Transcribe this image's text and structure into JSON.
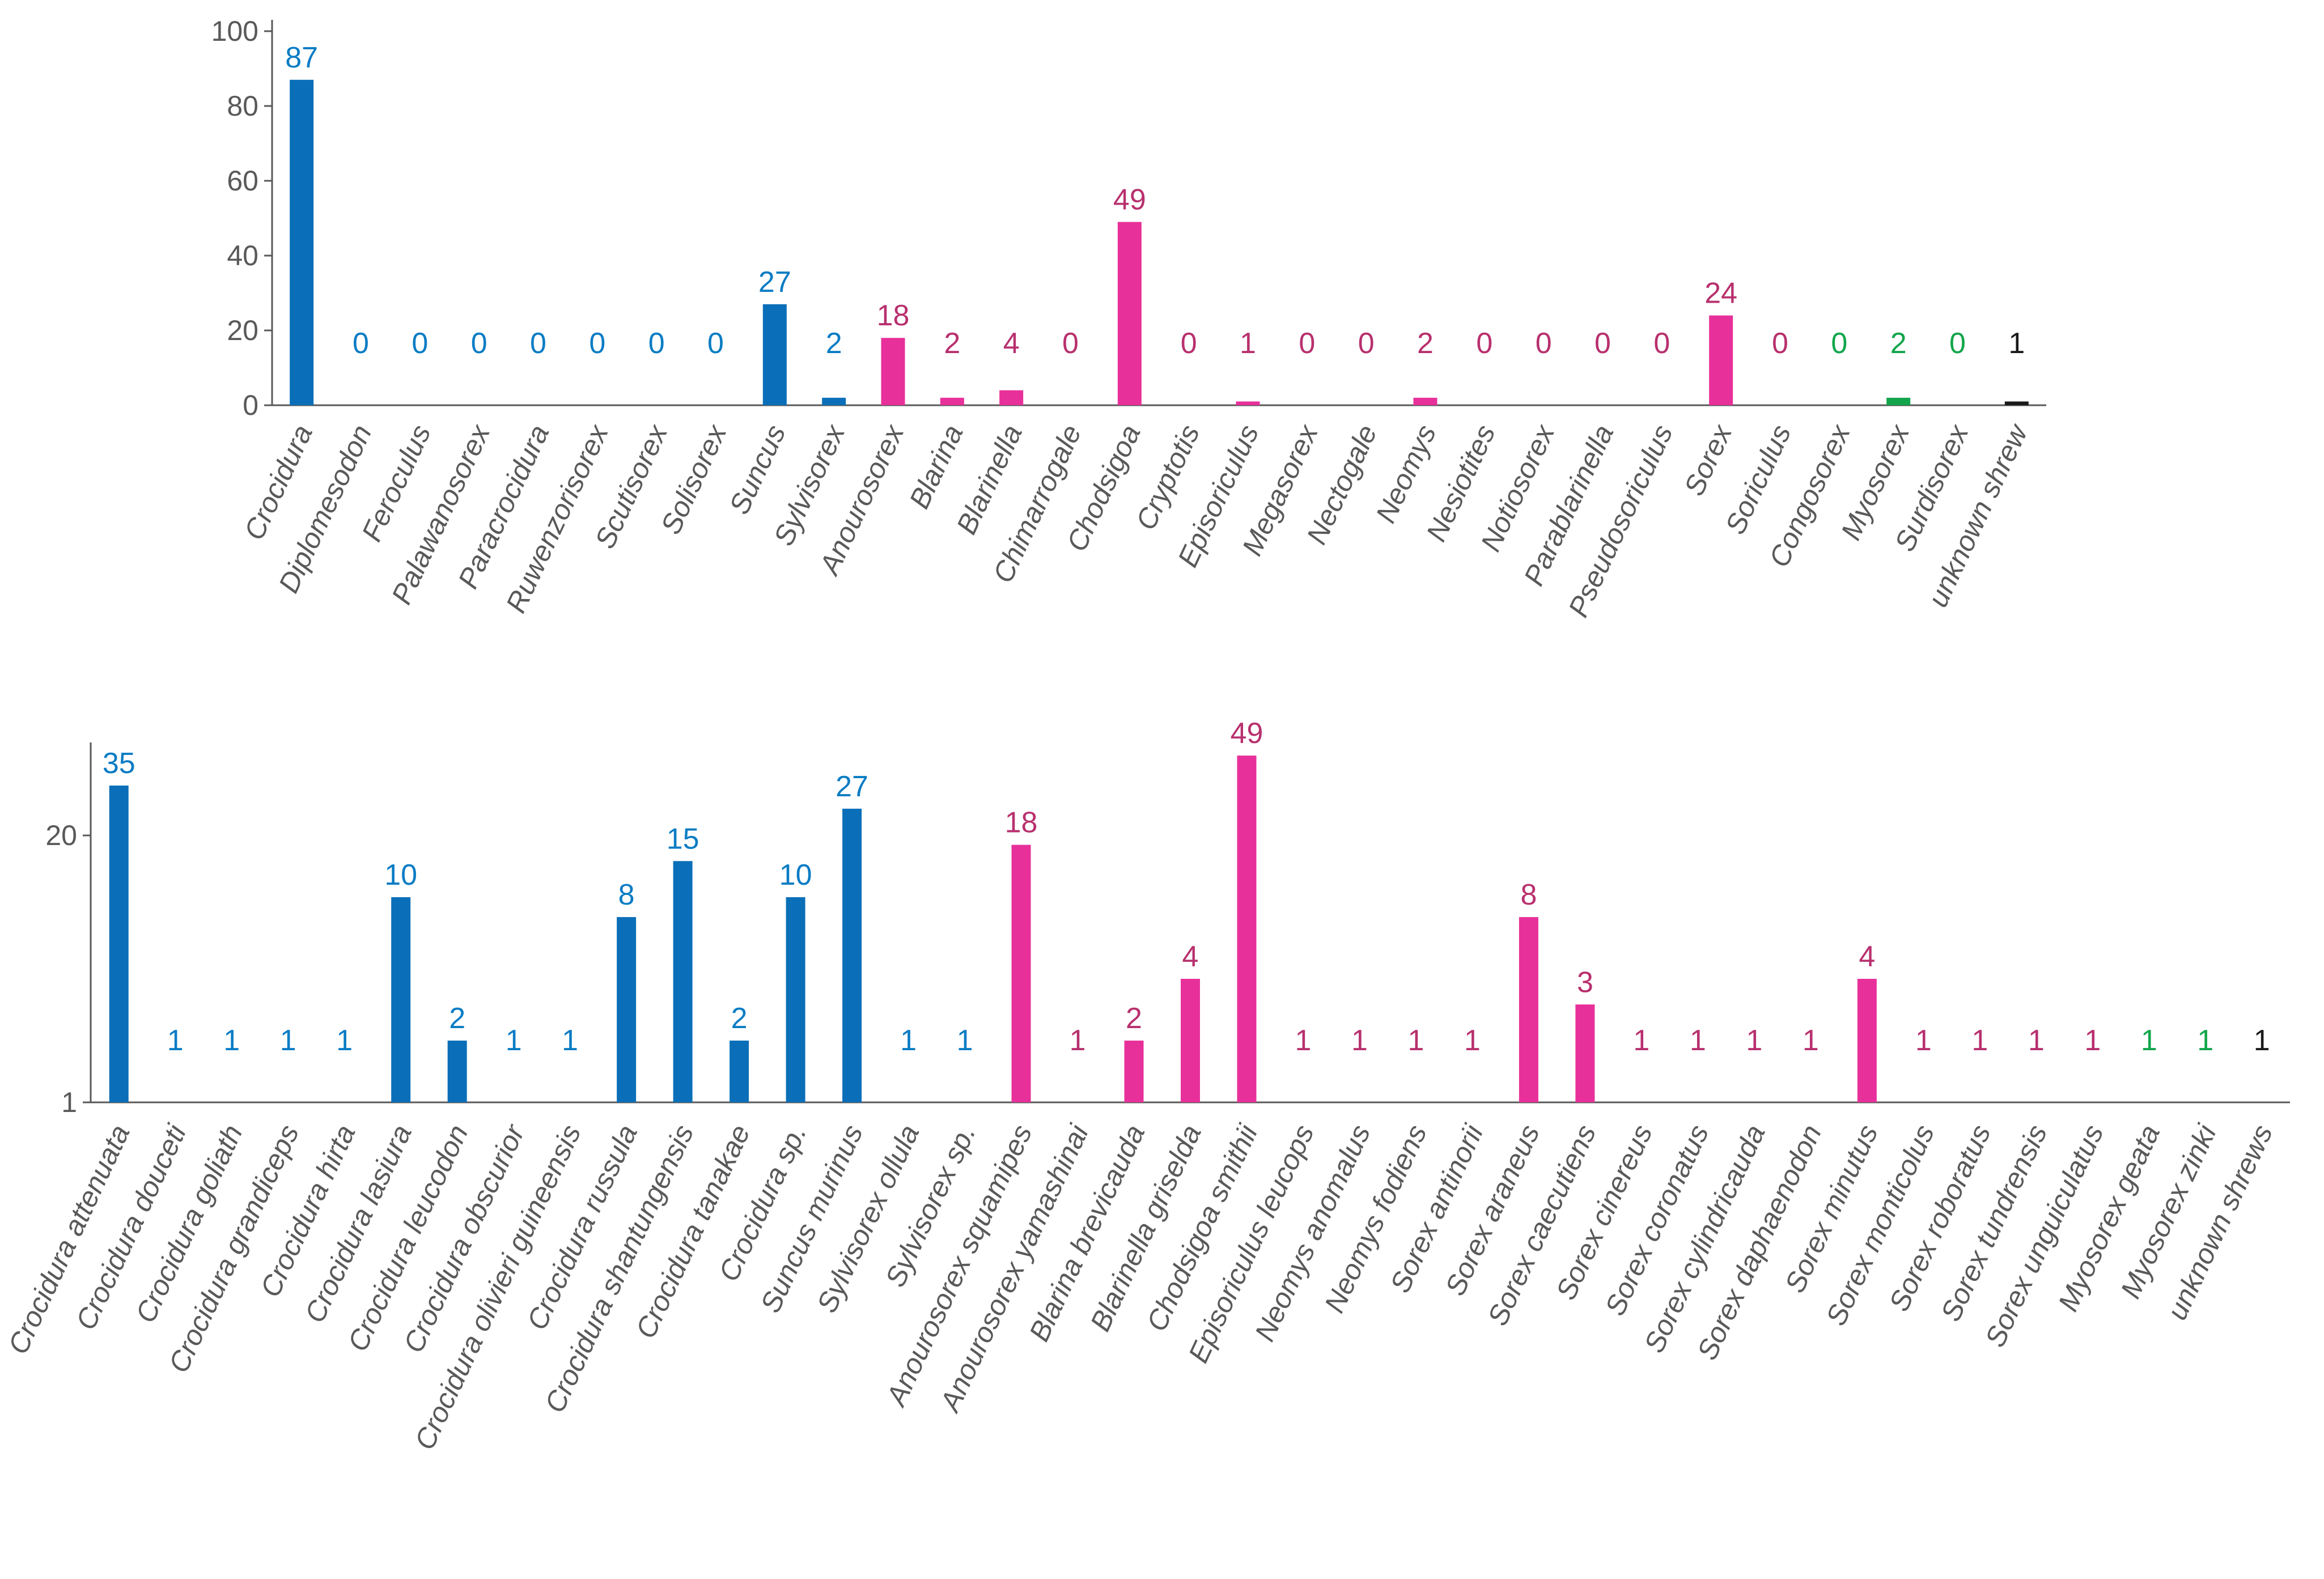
{
  "colors": {
    "Crocidurinae": "#0A6FB8",
    "Soricinae": "#E8309A",
    "Myosoricinae": "#12A54B",
    "unknown": "#1A1A1A",
    "label_Crocidurinae": "#0A7CC4",
    "label_Soricinae": "#B8306E",
    "label_Myosoricinae": "#12A54B",
    "label_unknown": "#1A1A1A"
  },
  "chart_data": [
    {
      "type": "bar",
      "title": "",
      "xlabel": "",
      "ylabel": "",
      "ylim": [
        0,
        100
      ],
      "yticks": [
        "0",
        "20",
        "40",
        "60",
        "80",
        "100"
      ],
      "categories": [
        "Crocidura",
        "Diplomesodon",
        "Feroculus",
        "Palawanosorex",
        "Paracrocidura",
        "Ruwenzorisorex",
        "Scutisorex",
        "Solisorex",
        "Suncus",
        "Sylvisorex",
        "Anourosorex",
        "Blarina",
        "Blarinella",
        "Chimarrogale",
        "Chodsigoa",
        "Cryptotis",
        "Episoriculus",
        "Megasorex",
        "Nectogale",
        "Neomys",
        "Nesiotites",
        "Notiosorex",
        "Parablarinella",
        "Pseudosoriculus",
        "Sorex",
        "Soriculus",
        "Congosorex",
        "Myosorex",
        "Surdisorex",
        "unknown shrew"
      ],
      "values": [
        87,
        0,
        0,
        0,
        0,
        0,
        0,
        0,
        27,
        2,
        18,
        2,
        4,
        0,
        49,
        0,
        1,
        0,
        0,
        2,
        0,
        0,
        0,
        0,
        24,
        0,
        0,
        2,
        0,
        1
      ],
      "labels": [
        "87",
        "0",
        "0",
        "0",
        "0",
        "0",
        "0",
        "0",
        "27",
        "2",
        "18",
        "2",
        "4",
        "0",
        "49",
        "0",
        "1",
        "0",
        "0",
        "2",
        "0",
        "0",
        "0",
        "0",
        "24",
        "0",
        "0",
        "2",
        "0",
        "1"
      ],
      "groups": [
        "Crocidurinae",
        "Crocidurinae",
        "Crocidurinae",
        "Crocidurinae",
        "Crocidurinae",
        "Crocidurinae",
        "Crocidurinae",
        "Crocidurinae",
        "Crocidurinae",
        "Crocidurinae",
        "Soricinae",
        "Soricinae",
        "Soricinae",
        "Soricinae",
        "Soricinae",
        "Soricinae",
        "Soricinae",
        "Soricinae",
        "Soricinae",
        "Soricinae",
        "Soricinae",
        "Soricinae",
        "Soricinae",
        "Soricinae",
        "Soricinae",
        "Soricinae",
        "Myosoricinae",
        "Myosoricinae",
        "Myosoricinae",
        "unknown"
      ]
    },
    {
      "type": "bar",
      "title": "",
      "xlabel": "",
      "ylabel": "",
      "yscale": "log",
      "ylim": [
        1,
        50
      ],
      "yticks": [
        "1",
        "20"
      ],
      "categories": [
        "Crocidura attenuata",
        "Crocidura douceti",
        "Crocidura goliath",
        "Crocidura grandiceps",
        "Crocidura hirta",
        "Crocidura lasiura",
        "Crocidura leucodon",
        "Crocidura obscurior",
        "Crocidura olivieri guineensis",
        "Crocidura russula",
        "Crocidura shantungensis",
        "Crocidura tanakae",
        "Crocidura sp.",
        "Suncus murinus",
        "Sylvisorex ollula",
        "Sylvisorex sp.",
        "Anourosorex squamipes",
        "Anourosorex yamashinai",
        "Blarina brevicauda",
        "Blarinella griselda",
        "Chodsigoa smithii",
        "Episoriculus leucops",
        "Neomys anomalus",
        "Neomys fodiens",
        "Sorex antinorii",
        "Sorex araneus",
        "Sorex caecutiens",
        "Sorex cinereus",
        "Sorex coronatus",
        "Sorex cylindricauda",
        "Sorex daphaenodon",
        "Sorex minutus",
        "Sorex monticolus",
        "Sorex roboratus",
        "Sorex tundrensis",
        "Sorex unguiculatus",
        "Myosorex geata",
        "Myosorex zinki",
        "unknown shrews"
      ],
      "values": [
        35,
        1,
        1,
        1,
        1,
        10,
        2,
        1,
        1,
        8,
        15,
        2,
        10,
        27,
        1,
        1,
        18,
        1,
        2,
        4,
        49,
        1,
        1,
        1,
        1,
        8,
        3,
        1,
        1,
        1,
        1,
        4,
        1,
        1,
        1,
        1,
        1,
        1,
        1
      ],
      "labels": [
        "35",
        "1",
        "1",
        "1",
        "1",
        "10",
        "2",
        "1",
        "1",
        "8",
        "15",
        "2",
        "10",
        "27",
        "1",
        "1",
        "18",
        "1",
        "2",
        "4",
        "49",
        "1",
        "1",
        "1",
        "1",
        "8",
        "3",
        "1",
        "1",
        "1",
        "1",
        "4",
        "1",
        "1",
        "1",
        "1",
        "1",
        "1",
        "1"
      ],
      "groups": [
        "Crocidurinae",
        "Crocidurinae",
        "Crocidurinae",
        "Crocidurinae",
        "Crocidurinae",
        "Crocidurinae",
        "Crocidurinae",
        "Crocidurinae",
        "Crocidurinae",
        "Crocidurinae",
        "Crocidurinae",
        "Crocidurinae",
        "Crocidurinae",
        "Crocidurinae",
        "Crocidurinae",
        "Crocidurinae",
        "Soricinae",
        "Soricinae",
        "Soricinae",
        "Soricinae",
        "Soricinae",
        "Soricinae",
        "Soricinae",
        "Soricinae",
        "Soricinae",
        "Soricinae",
        "Soricinae",
        "Soricinae",
        "Soricinae",
        "Soricinae",
        "Soricinae",
        "Soricinae",
        "Soricinae",
        "Soricinae",
        "Soricinae",
        "Soricinae",
        "Myosoricinae",
        "Myosoricinae",
        "unknown"
      ]
    }
  ]
}
